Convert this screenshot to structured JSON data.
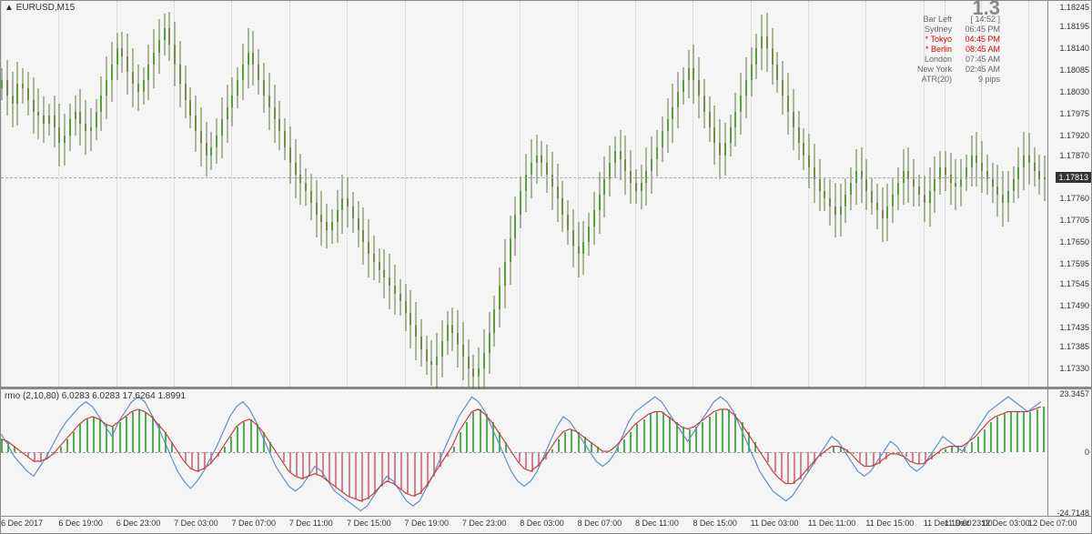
{
  "symbol_title": "▲ EURUSD,M15",
  "indicator_title": "rmo (2,10,80) 6.0283 6.0283 17.6264 1.8991",
  "big_number": "1.3",
  "info_rows": [
    {
      "label": "Bar Left",
      "value": "[ 14:52 ]",
      "red": false
    },
    {
      "label": "Sydney",
      "value": "06:45 PM",
      "red": false
    },
    {
      "label": "* Tokyo",
      "value": "04:45 PM",
      "red": true
    },
    {
      "label": "* Berlin",
      "value": "08:45 AM",
      "red": true
    },
    {
      "label": "London",
      "value": "07:45 AM",
      "red": false
    },
    {
      "label": "New York",
      "value": "02:45 AM",
      "red": false
    },
    {
      "label": "ATR(20)",
      "value": "9 pips",
      "red": false
    }
  ],
  "main_chart": {
    "ymin": 1.1728,
    "ymax": 1.1826,
    "yticks": [
      1.18245,
      1.18195,
      1.1814,
      1.18085,
      1.1803,
      1.17975,
      1.1792,
      1.1787,
      1.17813,
      1.1776,
      1.17705,
      1.1765,
      1.17595,
      1.17545,
      1.1749,
      1.17435,
      1.17385,
      1.1733
    ],
    "ytick_labels": [
      "1.18245",
      "1.18195",
      "1.18140",
      "1.18085",
      "1.18030",
      "1.17975",
      "1.17920",
      "1.17870",
      "1.17813",
      "1.17760",
      "1.17705",
      "1.17650",
      "1.17595",
      "1.17545",
      "1.17490",
      "1.17435",
      "1.17385",
      "1.17330"
    ],
    "current_price": 1.17813,
    "current_price_label": "1.17813",
    "bull_color": "#5a9e3d",
    "bear_color": "#7a8a4a",
    "wick_color": "#5a7a3a",
    "background": "#f5f5f5"
  },
  "indicator": {
    "ymin": -26,
    "ymax": 25,
    "yticks": [
      23.3457,
      0,
      -24.7148
    ],
    "ytick_labels": [
      "23.3457",
      "0",
      "-24.7148"
    ],
    "hist_pos_color": "#4caf50",
    "hist_neg_color": "#d88090",
    "area_pos_color": "rgba(76,175,80,0.6)",
    "area_neg_color": "rgba(216,128,144,0.6)",
    "blue_line_color": "#6090c0",
    "red_line_color": "#c04040"
  },
  "time_labels": [
    {
      "x": 0.0,
      "text": "6 Dec 2017"
    },
    {
      "x": 0.055,
      "text": "6 Dec 19:00"
    },
    {
      "x": 0.11,
      "text": "6 Dec 23:00"
    },
    {
      "x": 0.165,
      "text": "7 Dec 03:00"
    },
    {
      "x": 0.22,
      "text": "7 Dec 07:00"
    },
    {
      "x": 0.275,
      "text": "7 Dec 11:00"
    },
    {
      "x": 0.33,
      "text": "7 Dec 15:00"
    },
    {
      "x": 0.385,
      "text": "7 Dec 19:00"
    },
    {
      "x": 0.44,
      "text": "7 Dec 23:00"
    },
    {
      "x": 0.495,
      "text": "8 Dec 03:00"
    },
    {
      "x": 0.55,
      "text": "8 Dec 07:00"
    },
    {
      "x": 0.605,
      "text": "8 Dec 11:00"
    },
    {
      "x": 0.66,
      "text": "8 Dec 15:00"
    },
    {
      "x": 0.715,
      "text": "11 Dec 03:00"
    },
    {
      "x": 0.77,
      "text": "11 Dec 11:00"
    },
    {
      "x": 0.825,
      "text": "11 Dec 15:00"
    },
    {
      "x": 0.88,
      "text": "11 Dec 19:00"
    },
    {
      "x": 0.9,
      "text": "11 Dec 23:00"
    },
    {
      "x": 0.935,
      "text": "12 Dec 03:00"
    },
    {
      "x": 0.98,
      "text": "12 Dec 07:00"
    }
  ],
  "price_profile": [
    1.1806,
    1.1802,
    1.18,
    1.1805,
    1.1804,
    1.1801,
    1.1798,
    1.1797,
    1.1795,
    1.1797,
    1.1794,
    1.179,
    1.1792,
    1.1796,
    1.1798,
    1.1795,
    1.1793,
    1.1794,
    1.1798,
    1.1802,
    1.1806,
    1.181,
    1.1814,
    1.1812,
    1.1808,
    1.1805,
    1.1803,
    1.1806,
    1.181,
    1.1813,
    1.1816,
    1.1819,
    1.1815,
    1.181,
    1.1805,
    1.1801,
    1.1797,
    1.1793,
    1.179,
    1.1787,
    1.1789,
    1.1792,
    1.1796,
    1.1799,
    1.1802,
    1.1806,
    1.181,
    1.1813,
    1.181,
    1.1806,
    1.1802,
    1.1799,
    1.1796,
    1.1793,
    1.1789,
    1.1785,
    1.1782,
    1.178,
    1.1778,
    1.1775,
    1.1772,
    1.177,
    1.1768,
    1.177,
    1.1773,
    1.1776,
    1.1774,
    1.1771,
    1.1768,
    1.1765,
    1.1762,
    1.176,
    1.1758,
    1.1756,
    1.1754,
    1.1752,
    1.175,
    1.1747,
    1.1744,
    1.1741,
    1.1738,
    1.1735,
    1.1734,
    1.1736,
    1.174,
    1.1744,
    1.1742,
    1.1739,
    1.1736,
    1.1733,
    1.1731,
    1.1733,
    1.1737,
    1.1742,
    1.1748,
    1.1754,
    1.176,
    1.1766,
    1.1772,
    1.1778,
    1.1782,
    1.1785,
    1.1787,
    1.1785,
    1.1782,
    1.1779,
    1.1776,
    1.1772,
    1.1768,
    1.1764,
    1.1762,
    1.1765,
    1.1769,
    1.1773,
    1.1777,
    1.1781,
    1.1785,
    1.1788,
    1.1786,
    1.1783,
    1.178,
    1.1778,
    1.178,
    1.1783,
    1.1786,
    1.1789,
    1.1793,
    1.1796,
    1.1799,
    1.1803,
    1.1806,
    1.1809,
    1.1806,
    1.1802,
    1.1798,
    1.1794,
    1.179,
    1.1787,
    1.179,
    1.1794,
    1.1798,
    1.1802,
    1.1806,
    1.181,
    1.1814,
    1.1817,
    1.1814,
    1.181,
    1.1806,
    1.1802,
    1.1798,
    1.1794,
    1.179,
    1.1787,
    1.1784,
    1.1781,
    1.1778,
    1.1776,
    1.1774,
    1.1772,
    1.1774,
    1.1777,
    1.178,
    1.1783,
    1.1781,
    1.1778,
    1.1775,
    1.1773,
    1.1771,
    1.1774,
    1.1777,
    1.178,
    1.1783,
    1.1781,
    1.1779,
    1.1777,
    1.1775,
    1.1778,
    1.1781,
    1.1784,
    1.1782,
    1.178,
    1.1779,
    1.1781,
    1.1784,
    1.1787,
    1.1785,
    1.1783,
    1.1781,
    1.1779,
    1.1777,
    1.1775,
    1.1778,
    1.1781,
    1.1784,
    1.1787,
    1.1785,
    1.1783,
    1.1781,
    1.17813
  ],
  "blue_osc": [
    7,
    3,
    -2,
    -5,
    -8,
    -10,
    -6,
    -2,
    3,
    8,
    12,
    15,
    18,
    20,
    18,
    14,
    10,
    6,
    12,
    16,
    20,
    22,
    20,
    15,
    10,
    4,
    -2,
    -8,
    -12,
    -15,
    -12,
    -8,
    -3,
    2,
    8,
    14,
    18,
    20,
    17,
    12,
    6,
    0,
    -6,
    -10,
    -14,
    -16,
    -14,
    -10,
    -6,
    -8,
    -12,
    -16,
    -18,
    -20,
    -22,
    -24,
    -22,
    -18,
    -14,
    -10,
    -12,
    -16,
    -20,
    -22,
    -20,
    -15,
    -10,
    -4,
    2,
    8,
    14,
    18,
    22,
    20,
    16,
    10,
    4,
    -2,
    -8,
    -12,
    -14,
    -12,
    -8,
    -2,
    4,
    10,
    14,
    12,
    8,
    4,
    0,
    -4,
    -6,
    -4,
    0,
    6,
    12,
    16,
    18,
    20,
    22,
    20,
    16,
    12,
    8,
    4,
    8,
    12,
    16,
    20,
    22,
    20,
    16,
    10,
    4,
    -2,
    -8,
    -12,
    -16,
    -18,
    -20,
    -18,
    -14,
    -10,
    -6,
    -2,
    2,
    6,
    4,
    0,
    -4,
    -8,
    -10,
    -8,
    -4,
    0,
    4,
    2,
    -2,
    -6,
    -8,
    -6,
    -2,
    2,
    6,
    4,
    2,
    0,
    4,
    8,
    12,
    16,
    18,
    20,
    22,
    20,
    18,
    16,
    18,
    20
  ],
  "red_osc": [
    5,
    4,
    2,
    0,
    -2,
    -4,
    -4,
    -3,
    -1,
    2,
    5,
    8,
    11,
    13,
    14,
    13,
    11,
    10,
    12,
    14,
    16,
    17,
    16,
    14,
    11,
    8,
    4,
    0,
    -4,
    -7,
    -8,
    -7,
    -5,
    -2,
    2,
    6,
    10,
    12,
    13,
    11,
    8,
    4,
    0,
    -4,
    -8,
    -10,
    -11,
    -10,
    -9,
    -10,
    -12,
    -14,
    -16,
    -18,
    -19,
    -20,
    -19,
    -17,
    -14,
    -12,
    -13,
    -15,
    -17,
    -18,
    -17,
    -14,
    -10,
    -6,
    -2,
    2,
    8,
    12,
    16,
    17,
    15,
    12,
    8,
    4,
    0,
    -4,
    -7,
    -8,
    -6,
    -3,
    1,
    5,
    8,
    9,
    8,
    6,
    4,
    2,
    0,
    0,
    2,
    5,
    8,
    11,
    13,
    15,
    16,
    16,
    14,
    12,
    10,
    9,
    10,
    12,
    14,
    16,
    17,
    17,
    15,
    12,
    8,
    4,
    0,
    -4,
    -8,
    -11,
    -13,
    -13,
    -11,
    -8,
    -5,
    -2,
    0,
    2,
    2,
    1,
    -1,
    -4,
    -6,
    -6,
    -5,
    -3,
    -1,
    -1,
    -2,
    -4,
    -5,
    -5,
    -3,
    -1,
    1,
    2,
    2,
    2,
    4,
    6,
    9,
    12,
    14,
    15,
    16,
    16,
    16,
    16,
    17,
    18
  ]
}
